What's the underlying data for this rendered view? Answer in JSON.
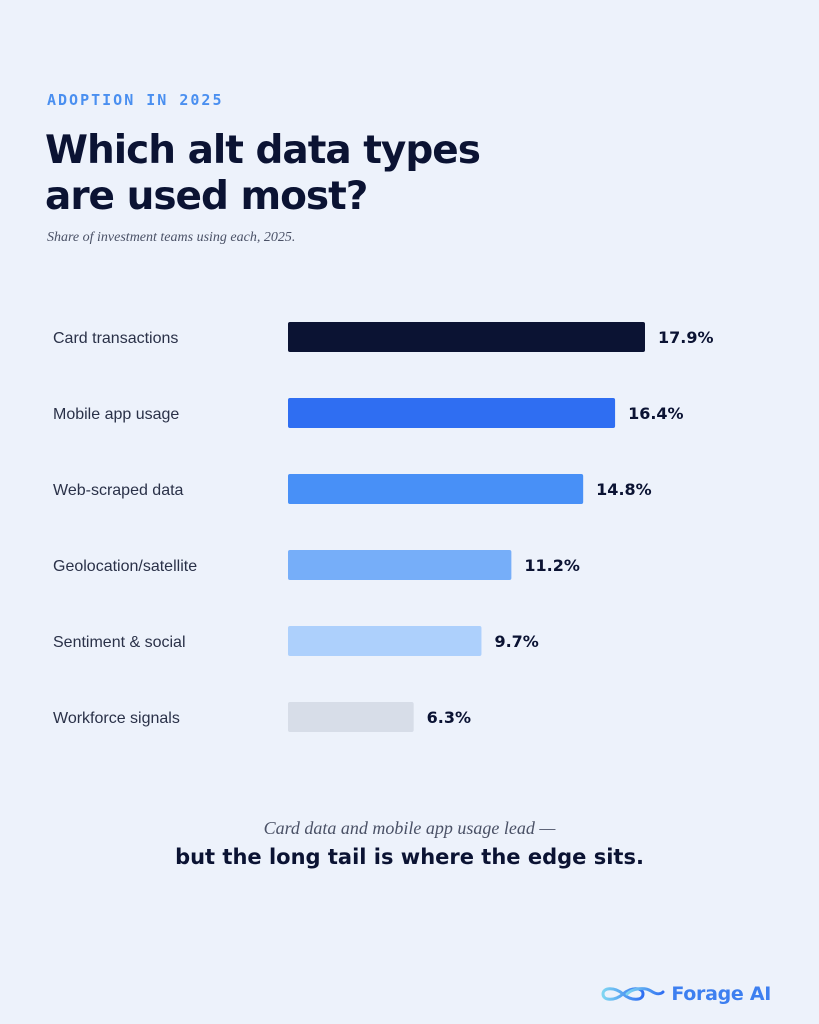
{
  "header": {
    "eyebrow": "ADOPTION IN 2025",
    "title_line1": "Which alt data types",
    "title_line2": "are used most?",
    "subtitle": "Share of investment teams using each, 2025."
  },
  "chart_data": {
    "type": "bar",
    "orientation": "horizontal",
    "categories": [
      "Card transactions",
      "Mobile app usage",
      "Web-scraped data",
      "Geolocation/satellite",
      "Sentiment & social",
      "Workforce signals"
    ],
    "values": [
      17.9,
      16.4,
      14.8,
      11.2,
      9.7,
      6.3
    ],
    "value_labels": [
      "17.9%",
      "16.4%",
      "14.8%",
      "11.2%",
      "9.7%",
      "6.3%"
    ],
    "bar_colors": [
      "#0b1333",
      "#2f6ef2",
      "#4890f7",
      "#76aef9",
      "#add0fc",
      "#d7dde8"
    ],
    "xlim": [
      0,
      17.9
    ],
    "grid": false,
    "legend": "none"
  },
  "footer": {
    "line1": "Card data and mobile app usage lead —",
    "line2": "but the long tail is where the edge sits."
  },
  "brand": {
    "name": "Forage AI",
    "color": "#3d7ff0"
  }
}
